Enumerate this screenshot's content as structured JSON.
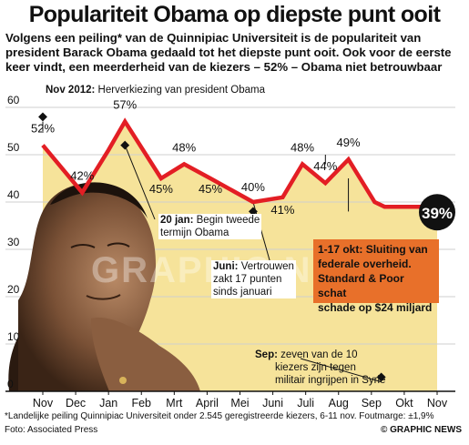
{
  "title": "Populariteit Obama op diepste punt ooit",
  "subtitle": "Volgens een peiling* van de Quinnipiac Universiteit is de populariteit van president Barack Obama gedaald tot het diepste punt ooit. Ook voor de eerste keer vindt, een meerderheid van de kiezers – 52% – Obama niet betrouwbaar",
  "annotations": {
    "nov2012_date": "Nov 2012:",
    "nov2012_text": "Herverkiezing van president Obama",
    "jan20_date": "20 jan:",
    "jan20_text1": "Begin tweede",
    "jan20_text2": "termijn Obama",
    "juni_date": "Juni:",
    "juni_text1": "Vertrouwen",
    "juni_text2": "zakt 17 punten",
    "juni_text3": "sinds januari",
    "okt_date": "1-17 okt:",
    "okt_text1": "Sluiting van",
    "okt_text2": "federale overheid.",
    "okt_text3": "Standard & Poor schat",
    "okt_text4": "schade op $24 miljard",
    "sep_date": "Sep:",
    "sep_text1": "zeven van de 10",
    "sep_text2": "kiezers zijn tegen",
    "sep_text3": "militair ingrijpen in Syrië"
  },
  "watermark": "GRAPHIC NEWS",
  "footnote": "*Landelijke peiling Quinnipiac Universiteit onder 2.545 geregistreerde kiezers, 6-11 nov. Foutmarge: ±1,9%",
  "credit": "Foto: Associated Press",
  "copyright": "© GRAPHIC NEWS",
  "colors": {
    "line": "#e31e24",
    "area": "#f6e39a",
    "grid": "#cfcfcf",
    "axis": "#111111",
    "highlight": "#e8702a",
    "endpoint": "#111111"
  },
  "chart_data": {
    "type": "area",
    "x": [
      0,
      1.2,
      2,
      2.5,
      3.6,
      4.3,
      5.1,
      6.4,
      7.3,
      7.9,
      8.6,
      9.3,
      10.1,
      10.4,
      11.2,
      12
    ],
    "y": [
      52,
      42,
      51,
      57,
      45,
      48,
      45,
      40,
      41,
      48,
      44,
      49,
      40,
      39,
      39,
      39
    ],
    "categories": [
      "Nov",
      "Dec",
      "Jan",
      "Feb",
      "Mrt",
      "April",
      "Mei",
      "Juni",
      "Juli",
      "Aug",
      "Sep",
      "Okt",
      "Nov"
    ],
    "labeled_points": [
      {
        "x": 0,
        "y": 52,
        "label": "52%"
      },
      {
        "x": 1.2,
        "y": 42,
        "label": "42%"
      },
      {
        "x": 2.5,
        "y": 57,
        "label": "57%"
      },
      {
        "x": 3.6,
        "y": 45,
        "label": "45%"
      },
      {
        "x": 4.3,
        "y": 48,
        "label": "48%"
      },
      {
        "x": 5.1,
        "y": 45,
        "label": "45%"
      },
      {
        "x": 6.4,
        "y": 40,
        "label": "40%"
      },
      {
        "x": 7.3,
        "y": 41,
        "label": "41%"
      },
      {
        "x": 7.9,
        "y": 48,
        "label": "48%"
      },
      {
        "x": 8.6,
        "y": 44,
        "label": "44%"
      },
      {
        "x": 9.3,
        "y": 49,
        "label": "49%"
      },
      {
        "x": 12,
        "y": 39,
        "label": "39%"
      }
    ],
    "yticks": [
      0,
      10,
      20,
      30,
      40,
      50,
      60
    ],
    "ylim": [
      0,
      62
    ],
    "grid": true
  }
}
